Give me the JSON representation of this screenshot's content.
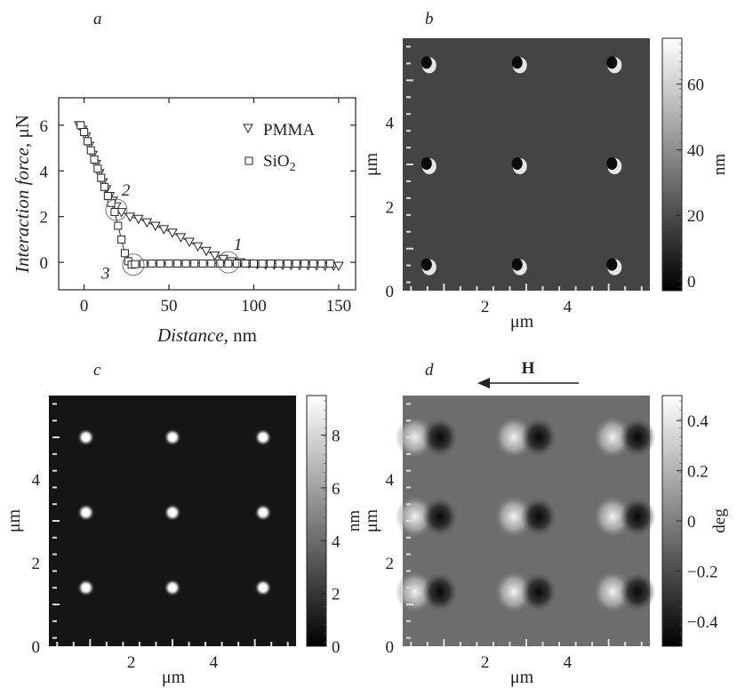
{
  "panels": {
    "a": {
      "label": "a"
    },
    "b": {
      "label": "b"
    },
    "c": {
      "label": "c"
    },
    "d": {
      "label": "d"
    }
  },
  "chart_data": [
    {
      "panel": "a",
      "type": "scatter",
      "xlabel_italic": "Distance",
      "xlabel_unit": ", nm",
      "ylabel_italic": "Interaction force",
      "ylabel_unit": ", μN",
      "xlim": [
        -15,
        160
      ],
      "ylim": [
        -1.2,
        7.2
      ],
      "xticks": [
        0,
        50,
        100,
        150
      ],
      "yticks": [
        0,
        2,
        4,
        6
      ],
      "legend_position": "top-right",
      "series": [
        {
          "name": "PMMA",
          "marker": "triangle-down",
          "x": [
            -3,
            -1,
            1,
            3,
            5,
            7,
            9,
            11,
            13,
            15,
            17,
            19,
            22,
            27,
            32,
            37,
            42,
            47,
            52,
            57,
            62,
            67,
            72,
            77,
            82,
            87,
            92,
            97,
            102,
            107,
            112,
            117,
            122,
            127,
            132,
            137,
            142,
            147,
            150
          ],
          "y": [
            6.0,
            5.8,
            5.5,
            5.1,
            4.7,
            4.3,
            3.9,
            3.5,
            3.2,
            2.9,
            2.7,
            2.45,
            2.2,
            2.0,
            1.9,
            1.75,
            1.6,
            1.45,
            1.3,
            1.1,
            0.9,
            0.7,
            0.5,
            0.3,
            0.15,
            0.05,
            0.0,
            -0.05,
            -0.08,
            -0.1,
            -0.1,
            -0.12,
            -0.12,
            -0.13,
            -0.13,
            -0.14,
            -0.15,
            -0.15,
            -0.15
          ]
        },
        {
          "name": "SiO2",
          "name_base": "SiO",
          "name_sub": "2",
          "marker": "square",
          "x": [
            -2,
            0,
            2,
            4,
            6,
            8,
            10,
            12,
            14,
            16,
            18,
            20,
            22,
            24,
            26,
            28,
            30,
            35,
            40,
            45,
            50,
            55,
            60,
            65,
            70,
            75,
            80,
            85,
            90,
            95,
            100,
            105,
            110,
            115,
            120,
            125,
            130,
            135,
            140,
            145
          ],
          "y": [
            6.0,
            5.7,
            5.3,
            4.9,
            4.5,
            4.1,
            3.7,
            3.3,
            2.9,
            2.6,
            2.2,
            1.6,
            1.0,
            0.4,
            0.05,
            -0.1,
            -0.08,
            -0.06,
            -0.05,
            -0.05,
            -0.05,
            -0.05,
            -0.05,
            -0.05,
            -0.05,
            -0.05,
            -0.05,
            -0.05,
            -0.05,
            -0.05,
            -0.05,
            -0.05,
            -0.05,
            -0.05,
            -0.05,
            -0.05,
            -0.05,
            -0.05,
            -0.05,
            -0.05
          ]
        }
      ],
      "annotations": [
        {
          "label": "1",
          "x": 85,
          "y": 0.0
        },
        {
          "label": "2",
          "x": 19,
          "y": 2.3
        },
        {
          "label": "3",
          "x": 29,
          "y": -0.1
        }
      ]
    },
    {
      "panel": "b",
      "type": "heatmap",
      "xlabel": "μm",
      "ylabel": "μm",
      "xlim": [
        0,
        6
      ],
      "ylim": [
        0,
        6
      ],
      "xticks": [
        2,
        4
      ],
      "yticks": [
        0,
        2,
        4
      ],
      "colorbar": {
        "unit": "nm",
        "ticks": [
          0,
          20,
          40,
          60
        ],
        "range": [
          -3,
          74
        ]
      },
      "features": [
        [
          0.6,
          5.4
        ],
        [
          2.8,
          5.4
        ],
        [
          5.1,
          5.4
        ],
        [
          0.6,
          3.0
        ],
        [
          2.8,
          3.0
        ],
        [
          5.1,
          3.0
        ],
        [
          0.6,
          0.6
        ],
        [
          2.8,
          0.6
        ],
        [
          5.1,
          0.6
        ]
      ]
    },
    {
      "panel": "c",
      "type": "heatmap",
      "xlabel": "μm",
      "ylabel": "μm",
      "xlim": [
        0,
        6
      ],
      "ylim": [
        0,
        6
      ],
      "xticks": [
        2,
        4
      ],
      "yticks": [
        0,
        2,
        4
      ],
      "colorbar": {
        "unit": "nm",
        "ticks": [
          0,
          2,
          4,
          6,
          8
        ],
        "range": [
          0,
          9.5
        ]
      },
      "features": [
        [
          0.9,
          5.0
        ],
        [
          3.0,
          5.0
        ],
        [
          5.2,
          5.0
        ],
        [
          0.9,
          3.2
        ],
        [
          3.0,
          3.2
        ],
        [
          5.2,
          3.2
        ],
        [
          0.9,
          1.4
        ],
        [
          3.0,
          1.4
        ],
        [
          5.2,
          1.4
        ]
      ]
    },
    {
      "panel": "d",
      "type": "heatmap",
      "xlabel": "μm",
      "ylabel": "μm",
      "xlim": [
        0,
        6
      ],
      "ylim": [
        0,
        6
      ],
      "xticks": [
        2,
        4
      ],
      "yticks": [
        0,
        2,
        4
      ],
      "colorbar": {
        "unit": "deg",
        "ticks": [
          -0.4,
          -0.2,
          0,
          0.2,
          0.4
        ],
        "tick_labels": [
          "−0.4",
          "−0.2",
          "0",
          "0.2",
          "0.4"
        ],
        "range": [
          -0.5,
          0.5
        ]
      },
      "field_label": "H",
      "features": [
        [
          0.6,
          5.0
        ],
        [
          3.0,
          5.0
        ],
        [
          5.4,
          5.0
        ],
        [
          0.6,
          3.1
        ],
        [
          3.0,
          3.1
        ],
        [
          5.4,
          3.1
        ],
        [
          0.6,
          1.3
        ],
        [
          3.0,
          1.3
        ],
        [
          5.4,
          1.3
        ]
      ]
    }
  ]
}
